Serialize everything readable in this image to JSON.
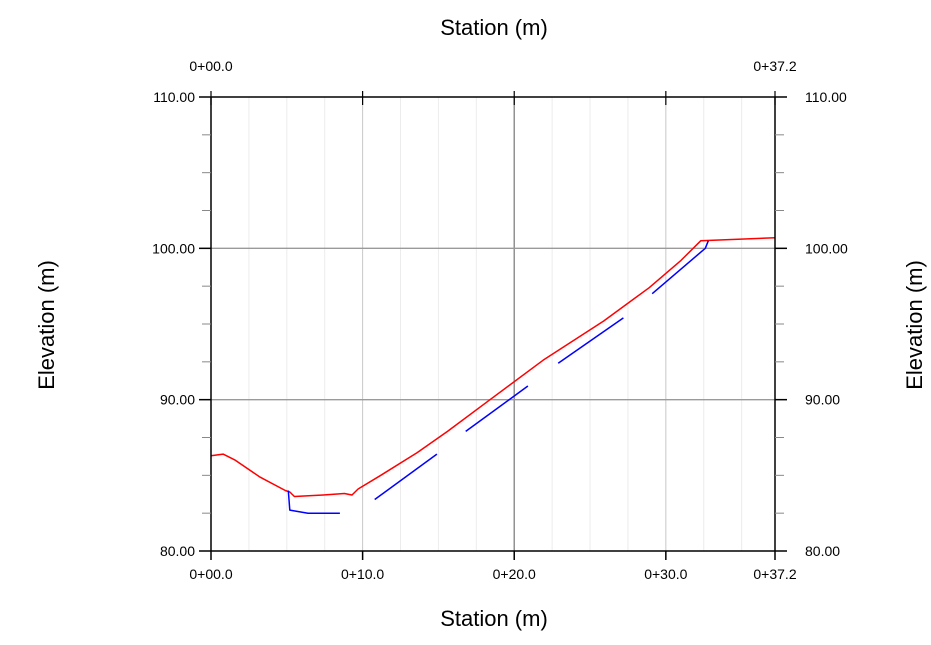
{
  "chart_data": {
    "type": "line",
    "title": "",
    "xlabel_top": "Station (m)",
    "xlabel_bottom": "Station (m)",
    "ylabel_left": "Elevation (m)",
    "ylabel_right": "Elevation (m)",
    "xlim": [
      0,
      37.2
    ],
    "ylim": [
      80,
      110
    ],
    "x_ticks_bottom": [
      {
        "value": 0,
        "label": "0+00.0"
      },
      {
        "value": 10,
        "label": "0+10.0"
      },
      {
        "value": 20,
        "label": "0+20.0"
      },
      {
        "value": 30,
        "label": "0+30.0"
      },
      {
        "value": 37.2,
        "label": "0+37.2"
      }
    ],
    "x_ticks_top": [
      {
        "value": 0,
        "label": "0+00.0"
      },
      {
        "value": 37.2,
        "label": "0+37.2"
      }
    ],
    "y_ticks": [
      {
        "value": 80,
        "label": "80.00"
      },
      {
        "value": 90,
        "label": "90.00"
      },
      {
        "value": 100,
        "label": "100.00"
      },
      {
        "value": 110,
        "label": "110.00"
      }
    ],
    "y_minor_step": 2.5,
    "grid": true,
    "series": [
      {
        "color": "#ff0000",
        "segments": [
          [
            [
              0,
              86.3
            ],
            [
              0.8,
              86.4
            ],
            [
              1.6,
              86
            ],
            [
              3.2,
              84.9
            ],
            [
              4.9,
              84
            ],
            [
              5.2,
              83.9
            ],
            [
              5.5,
              83.6
            ],
            [
              7.4,
              83.7
            ],
            [
              8.8,
              83.8
            ],
            [
              9.3,
              83.7
            ],
            [
              9.7,
              84.1
            ],
            [
              11.2,
              85
            ],
            [
              13.6,
              86.5
            ],
            [
              15.6,
              87.9
            ],
            [
              18.4,
              90
            ],
            [
              21.9,
              92.6
            ],
            [
              25.9,
              95.2
            ],
            [
              28.9,
              97.4
            ],
            [
              31.0,
              99.2
            ],
            [
              32.3,
              100.5
            ],
            [
              37.2,
              100.7
            ]
          ]
        ]
      },
      {
        "color": "#0000ff",
        "segments": [
          [
            [
              5.1,
              84
            ],
            [
              5.2,
              82.7
            ],
            [
              6.4,
              82.5
            ],
            [
              8.5,
              82.5
            ]
          ],
          [
            [
              10.8,
              83.4
            ],
            [
              14.9,
              86.4
            ]
          ],
          [
            [
              16.8,
              87.9
            ],
            [
              20.9,
              90.9
            ]
          ],
          [
            [
              22.9,
              92.4
            ],
            [
              27.2,
              95.4
            ]
          ],
          [
            [
              29.1,
              97
            ],
            [
              32.6,
              100
            ],
            [
              32.8,
              100.5
            ]
          ]
        ]
      }
    ]
  }
}
